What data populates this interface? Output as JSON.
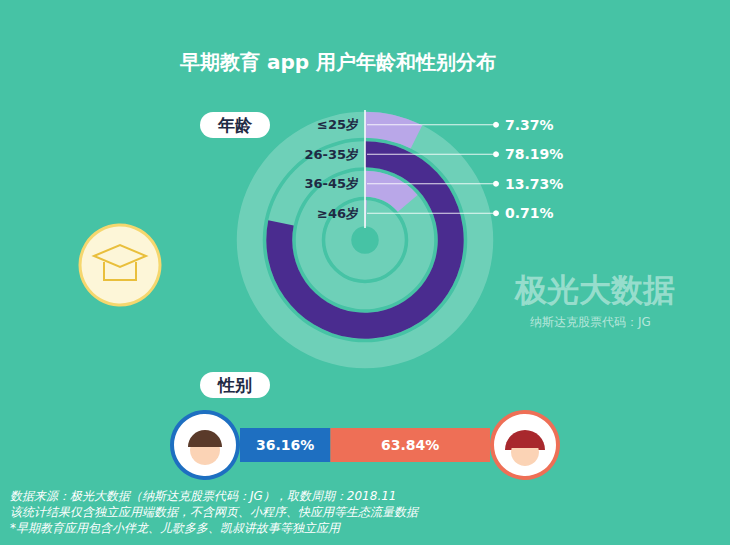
{
  "title": "早期教育 app 用户年龄和性别分布",
  "chart_data": [
    {
      "type": "radial_bar",
      "title": "年龄",
      "categories": [
        "≤25岁",
        "26-35岁",
        "36-45岁",
        "≥46岁"
      ],
      "values": [
        7.37,
        78.19,
        13.73,
        0.71
      ],
      "value_labels": [
        "7.37%",
        "78.19%",
        "13.73%",
        "0.71%"
      ],
      "colors": [
        "#b9a7e8",
        "#4a2c8f",
        "#b9a7e8",
        "#b9a7e8"
      ],
      "ylim": [
        0,
        100
      ],
      "tick_labels": false,
      "data_labels": true
    },
    {
      "type": "bar",
      "title": "性别",
      "orientation": "horizontal",
      "stacked": true,
      "values": [
        36.16,
        63.84
      ],
      "value_labels": [
        "36.16%",
        "63.84%"
      ],
      "colors": [
        "#1e6fc1",
        "#ee6f56"
      ],
      "xlim": [
        0,
        100
      ],
      "tick_labels": false,
      "data_labels": true
    }
  ],
  "watermark": [
    "极光大数据",
    "纳斯达克股票代码：JG"
  ],
  "notes": [
    "数据来源：极光大数据（纳斯达克股票代码：JG），取数周期：2018.11",
    "该统计结果仅含独立应用端数据，不含网页、小程序、快应用等生态流量数据",
    "*早期教育应用包含小伴龙、儿歌多多、凯叔讲故事等独立应用"
  ]
}
